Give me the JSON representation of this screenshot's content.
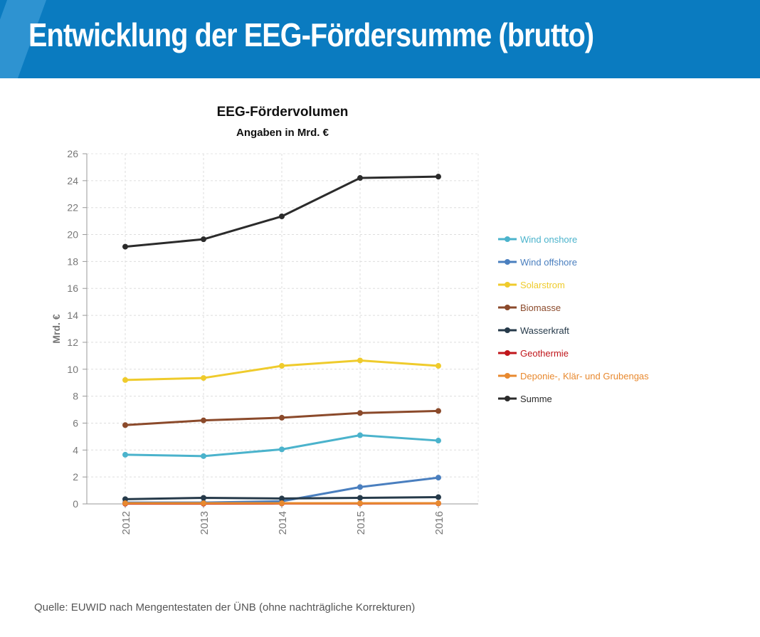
{
  "header": {
    "title": "Entwicklung der EEG-Fördersumme (brutto)"
  },
  "source": "Quelle: EUWID nach Mengentestaten der ÜNB (ohne nachträgliche Korrekturen)",
  "chart_data": {
    "type": "line",
    "title": "EEG-Fördervolumen",
    "subtitle": "Angaben in Mrd. €",
    "xlabel": "",
    "ylabel": "Mrd. €",
    "ylim": [
      0,
      26
    ],
    "yticks": [
      "0",
      "2",
      "4",
      "6",
      "8",
      "10",
      "12",
      "14",
      "16",
      "18",
      "20",
      "22",
      "24",
      "26"
    ],
    "categories": [
      "2012",
      "2013",
      "2014",
      "2015",
      "2016"
    ],
    "grid": true,
    "legend_position": "right",
    "series": [
      {
        "name": "Wind onshore",
        "color": "#4bb3cc",
        "values": [
          3.65,
          3.55,
          4.05,
          5.1,
          4.7
        ]
      },
      {
        "name": "Wind offshore",
        "color": "#4a7fbf",
        "values": [
          0.1,
          0.1,
          0.2,
          1.25,
          1.95
        ]
      },
      {
        "name": "Solarstrom",
        "color": "#efcb2c",
        "values": [
          9.2,
          9.35,
          10.25,
          10.65,
          10.25
        ]
      },
      {
        "name": "Biomasse",
        "color": "#8b4a2b",
        "values": [
          5.85,
          6.2,
          6.4,
          6.75,
          6.9
        ]
      },
      {
        "name": "Wasserkraft",
        "color": "#263a4a",
        "values": [
          0.35,
          0.45,
          0.4,
          0.45,
          0.5
        ]
      },
      {
        "name": "Geothermie",
        "color": "#c0161b",
        "values": [
          0.02,
          0.02,
          0.03,
          0.03,
          0.04
        ]
      },
      {
        "name": "Deponie-, Klär- und Grubengas",
        "color": "#e8892f",
        "values": [
          0.05,
          0.05,
          0.05,
          0.05,
          0.05
        ]
      },
      {
        "name": "Summe",
        "color": "#2b2b2b",
        "values": [
          19.1,
          19.65,
          21.35,
          24.2,
          24.3
        ]
      }
    ]
  }
}
